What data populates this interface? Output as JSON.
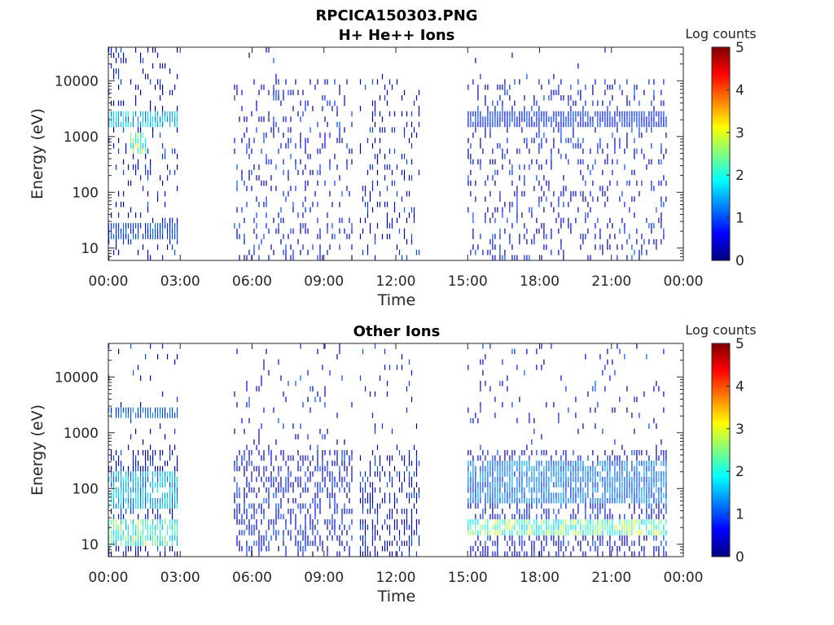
{
  "figure": {
    "title": "RPCICA150303.PNG"
  },
  "colormap": {
    "name": "jet",
    "stops": [
      "#00007f",
      "#0000ff",
      "#007fff",
      "#00ffff",
      "#7fff7f",
      "#ffff00",
      "#ff7f00",
      "#ff0000",
      "#7f0000"
    ]
  },
  "chart_data": [
    {
      "type": "heatmap",
      "title": "H+ He++ Ions",
      "xlabel": "Time",
      "ylabel": "Energy (eV)",
      "x_ticks": [
        "00:00",
        "03:00",
        "06:00",
        "09:00",
        "12:00",
        "15:00",
        "18:00",
        "21:00",
        "00:00"
      ],
      "y_ticks": [
        "10",
        "100",
        "1000",
        "10000"
      ],
      "y_scale": "log",
      "ylim": [
        6,
        40000
      ],
      "xlim_hours": [
        0,
        24
      ],
      "colorbar": {
        "label": "Log counts",
        "ticks": [
          "0",
          "1",
          "2",
          "3",
          "4",
          "5"
        ],
        "range": [
          0,
          5
        ]
      },
      "data_intervals_hours": [
        [
          0.0,
          2.95
        ],
        [
          5.25,
          10.2
        ],
        [
          10.5,
          12.95
        ],
        [
          15.0,
          23.3
        ]
      ],
      "features": [
        {
          "time_hours": [
            0.0,
            2.95
          ],
          "energy_eV": [
            1500,
            3000
          ],
          "log_counts": 1.8
        },
        {
          "time_hours": [
            0.0,
            2.95
          ],
          "energy_eV": [
            15,
            30
          ],
          "log_counts": 1.0
        },
        {
          "time_hours": [
            0.9,
            1.6
          ],
          "energy_eV": [
            500,
            1200
          ],
          "log_counts": 2.6
        },
        {
          "time_hours": [
            15.0,
            23.3
          ],
          "energy_eV": [
            1500,
            3000
          ],
          "log_counts": 0.9
        }
      ]
    },
    {
      "type": "heatmap",
      "title": "Other Ions",
      "xlabel": "Time",
      "ylabel": "Energy (eV)",
      "x_ticks": [
        "00:00",
        "03:00",
        "06:00",
        "09:00",
        "12:00",
        "15:00",
        "18:00",
        "21:00",
        "00:00"
      ],
      "y_ticks": [
        "10",
        "100",
        "1000",
        "10000"
      ],
      "y_scale": "log",
      "ylim": [
        6,
        40000
      ],
      "xlim_hours": [
        0,
        24
      ],
      "colorbar": {
        "label": "Log counts",
        "ticks": [
          "0",
          "1",
          "2",
          "3",
          "4",
          "5"
        ],
        "range": [
          0,
          5
        ]
      },
      "data_intervals_hours": [
        [
          0.0,
          2.95
        ],
        [
          5.25,
          10.2
        ],
        [
          10.5,
          12.95
        ],
        [
          15.0,
          23.3
        ]
      ],
      "features": [
        {
          "time_hours": [
            0.0,
            2.95
          ],
          "energy_eV": [
            1800,
            3000
          ],
          "log_counts": 1.2
        },
        {
          "time_hours": [
            0.0,
            2.95
          ],
          "energy_eV": [
            10,
            30
          ],
          "log_counts": 2.4
        },
        {
          "time_hours": [
            0.0,
            2.95
          ],
          "energy_eV": [
            40,
            200
          ],
          "log_counts": 1.6
        },
        {
          "time_hours": [
            15.0,
            23.3
          ],
          "energy_eV": [
            15,
            30
          ],
          "log_counts": 2.6
        },
        {
          "time_hours": [
            15.0,
            23.3
          ],
          "energy_eV": [
            50,
            300
          ],
          "log_counts": 1.3
        }
      ]
    }
  ]
}
